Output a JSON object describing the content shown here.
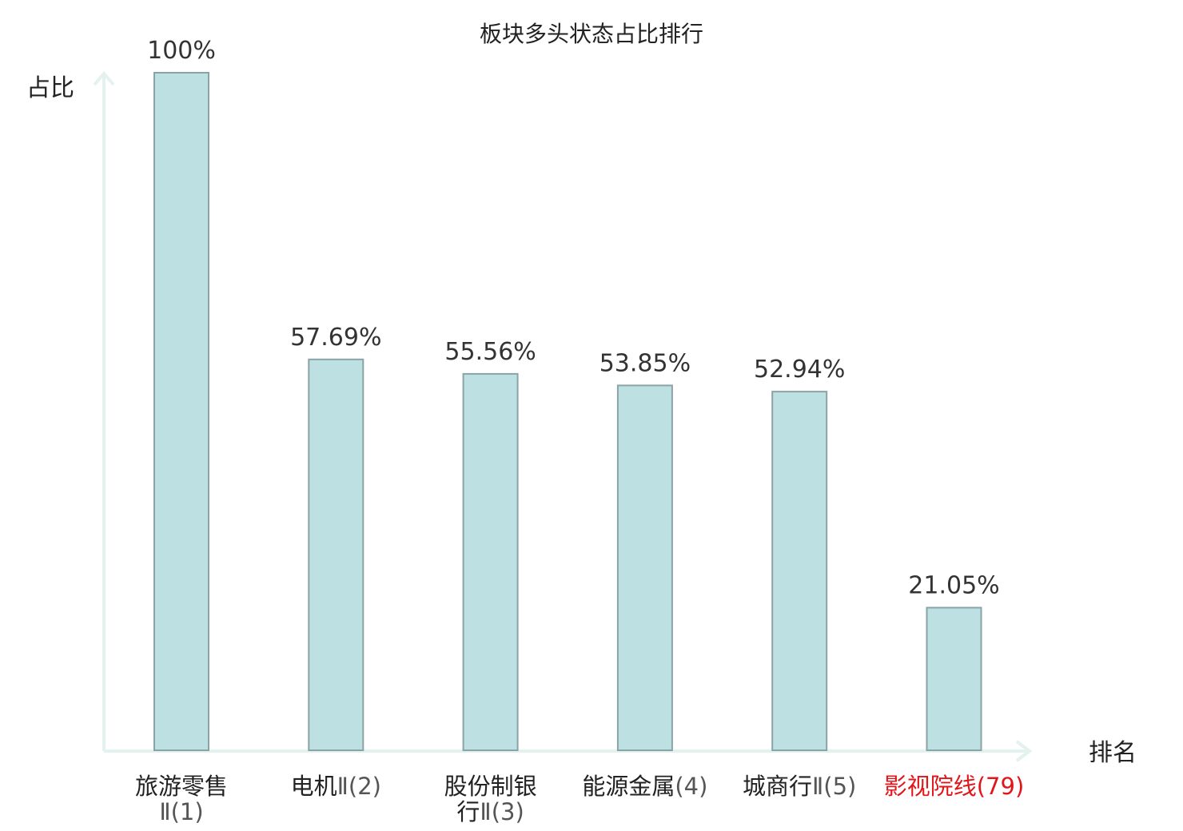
{
  "chart_data": {
    "type": "bar",
    "title": "板块多头状态占比排行",
    "ylabel": "占比",
    "xlabel": "排名",
    "categories": [
      {
        "lines": [
          [
            {
              "text": "旅游零售",
              "style": "name"
            }
          ],
          [
            {
              "text": "Ⅱ(1)",
              "style": "rank"
            }
          ]
        ],
        "highlight": false
      },
      {
        "lines": [
          [
            {
              "text": "电机",
              "style": "name"
            },
            {
              "text": "Ⅱ(2)",
              "style": "rank"
            }
          ]
        ],
        "highlight": false
      },
      {
        "lines": [
          [
            {
              "text": "股份制银",
              "style": "name"
            }
          ],
          [
            {
              "text": "行",
              "style": "name"
            },
            {
              "text": "Ⅱ(3)",
              "style": "rank"
            }
          ]
        ],
        "highlight": false
      },
      {
        "lines": [
          [
            {
              "text": "能源金属",
              "style": "name"
            },
            {
              "text": "(4)",
              "style": "rank"
            }
          ]
        ],
        "highlight": false
      },
      {
        "lines": [
          [
            {
              "text": "城商行",
              "style": "name"
            },
            {
              "text": "Ⅱ(5)",
              "style": "rank"
            }
          ]
        ],
        "highlight": false
      },
      {
        "lines": [
          [
            {
              "text": "影视院线",
              "style": "name"
            },
            {
              "text": "(79)",
              "style": "rank"
            }
          ]
        ],
        "highlight": true
      }
    ],
    "values": [
      100,
      57.69,
      55.56,
      53.85,
      52.94,
      21.05
    ],
    "value_labels": [
      "100%",
      "57.69%",
      "55.56%",
      "53.85%",
      "52.94%",
      "21.05%"
    ],
    "ylim": [
      0,
      100
    ],
    "grid": false,
    "legend": "none",
    "colors": {
      "bar_fill": "#bde0e3",
      "bar_stroke": "#8aa3a6",
      "axis": "#e3f2ef",
      "highlight": "#e0161b"
    }
  }
}
